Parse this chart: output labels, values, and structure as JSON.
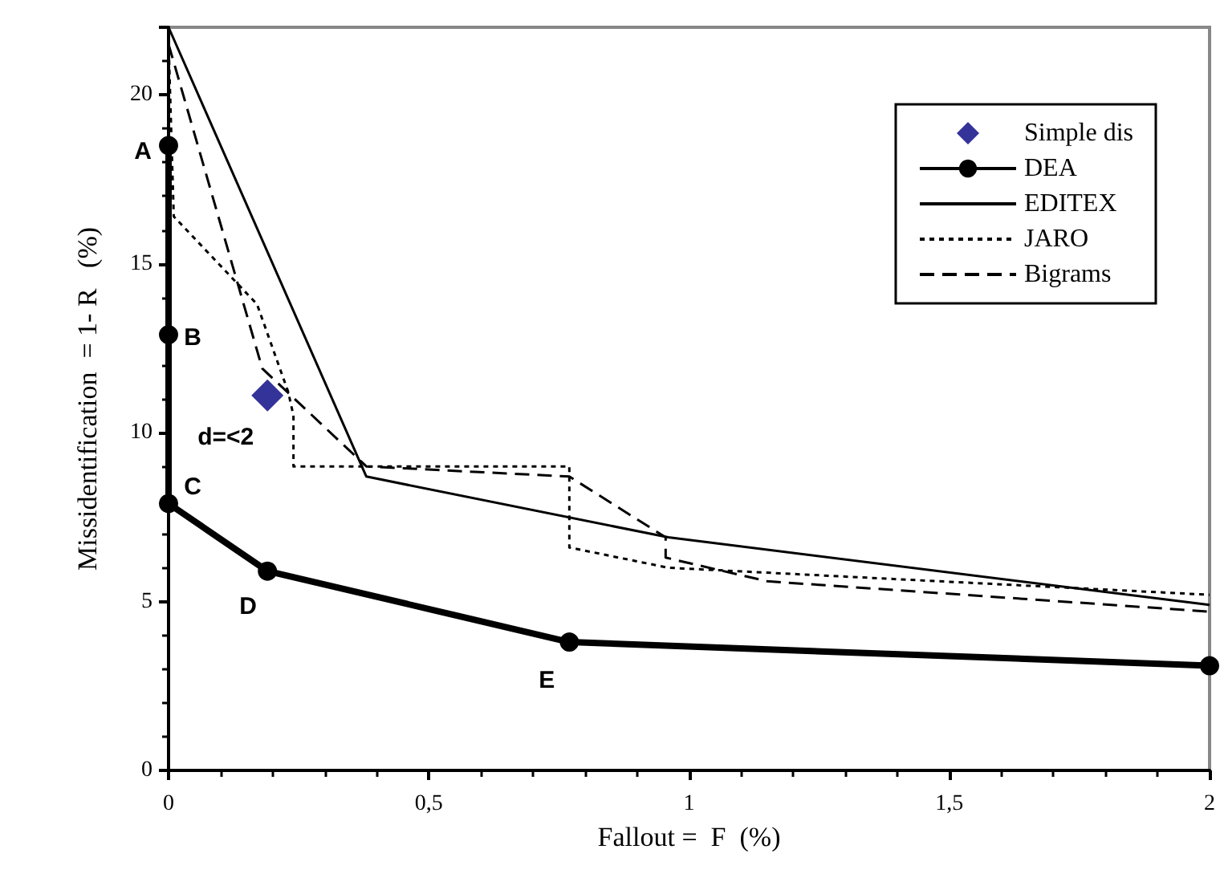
{
  "chart_data": {
    "type": "line",
    "xlabel": "Fallout =  F  (%)",
    "ylabel": "Missidentification  = 1- R   (%)",
    "xlim": [
      0,
      2
    ],
    "xticks": [
      0,
      {
        "value": 0.5,
        "label": "0,5"
      },
      1,
      {
        "value": 1.5,
        "label": "1,5"
      },
      2
    ],
    "ylim": [
      0,
      22
    ],
    "yticks": [
      0,
      5,
      10,
      15,
      20
    ],
    "grid": false,
    "legend": "top right",
    "series": [
      {
        "name": "Simple dis",
        "type": "scatter",
        "marker": "diamond",
        "color": "#000080",
        "x": [
          0.19
        ],
        "values": [
          11.1
        ]
      },
      {
        "name": "DEA",
        "color": "#000000",
        "marker": "circle",
        "line_style": "solid",
        "x": [
          0,
          0,
          0,
          0.19,
          0.77,
          2
        ],
        "values": [
          18.5,
          12.9,
          7.9,
          5.9,
          3.8,
          3.1
        ]
      },
      {
        "name": "EDITEX",
        "color": "#000000",
        "marker": "none",
        "line_style": "solid",
        "x": [
          0,
          0.38,
          0.96,
          2
        ],
        "values": [
          22,
          8.7,
          6.9,
          4.9
        ]
      },
      {
        "name": "JARO",
        "color": "#000000",
        "marker": "none",
        "line_style": "dotted",
        "x": [
          0,
          0.01,
          0.17,
          0.23,
          0.24,
          0.24,
          0.77,
          0.77,
          0.96,
          2
        ],
        "values": [
          21.6,
          16.4,
          13.8,
          11.2,
          10.5,
          9,
          9,
          6.6,
          6.0,
          5.2
        ]
      },
      {
        "name": "Bigrams",
        "color": "#000000",
        "marker": "none",
        "line_style": "dashed",
        "x": [
          0,
          0.18,
          0.38,
          0.77,
          0.955,
          0.955,
          1.15,
          2
        ],
        "values": [
          21.5,
          11.9,
          9,
          8.7,
          6.9,
          6.3,
          5.6,
          4.7
        ]
      }
    ],
    "annotations": [
      {
        "text": "A",
        "x": 0,
        "y": 18.5
      },
      {
        "text": "B",
        "x": 0,
        "y": 12.9
      },
      {
        "text": "C",
        "x": 0,
        "y": 7.9
      },
      {
        "text": "D",
        "x": 0.19,
        "y": 5.9
      },
      {
        "text": "E",
        "x": 0.77,
        "y": 3.8
      },
      {
        "text": "d=<2",
        "x": 0.19,
        "y": 11.1
      }
    ]
  }
}
